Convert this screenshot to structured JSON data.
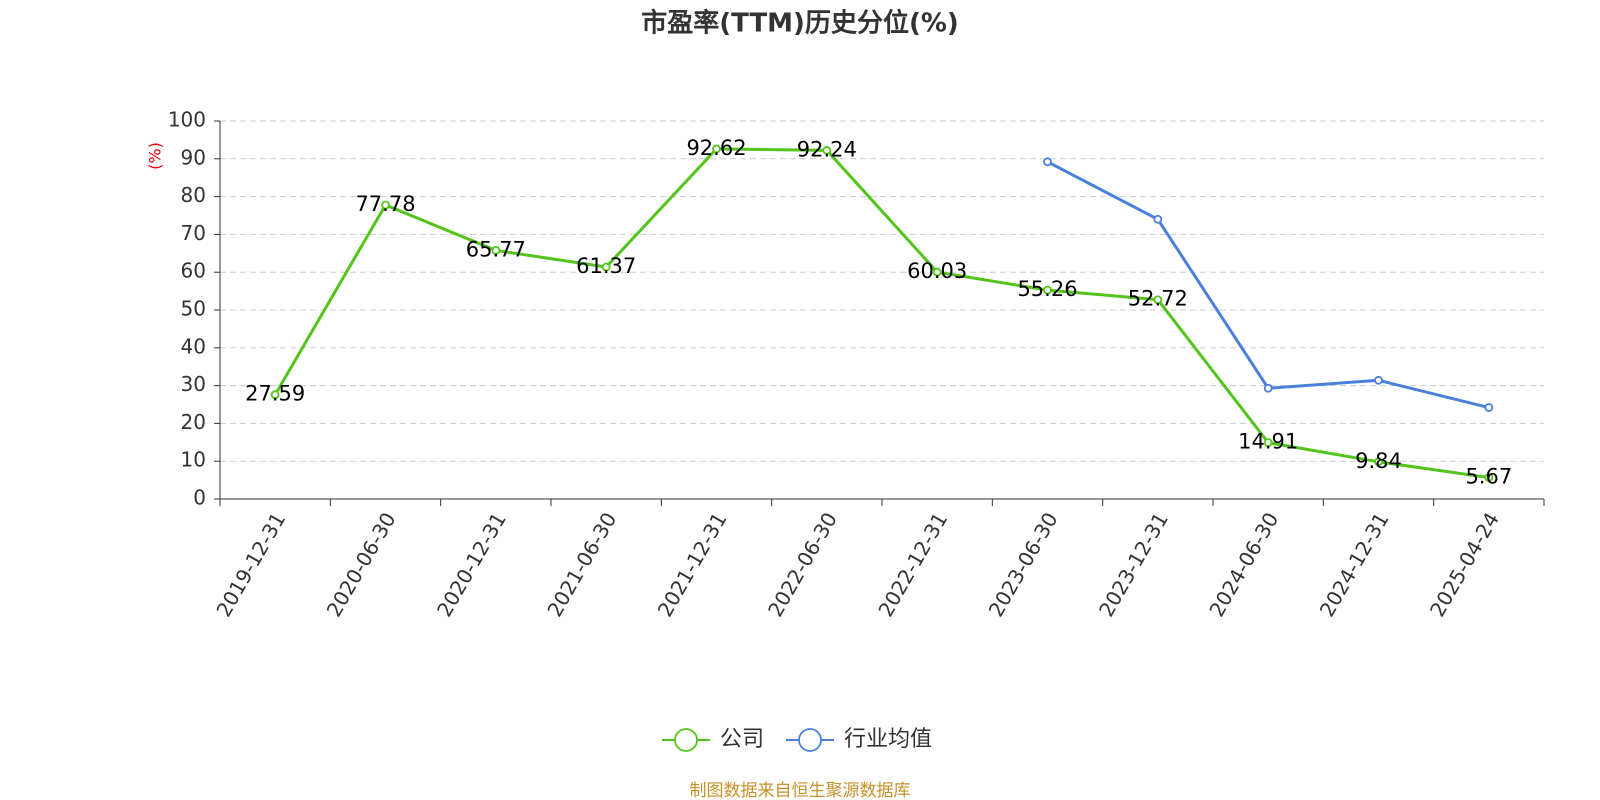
{
  "chart_data": {
    "type": "line",
    "title": "市盈率(TTM)历史分位(%)",
    "y_label": "(%)",
    "categories": [
      "2019-12-31",
      "2020-06-30",
      "2020-12-31",
      "2021-06-30",
      "2021-12-31",
      "2022-06-30",
      "2022-12-31",
      "2023-06-30",
      "2023-12-31",
      "2024-06-30",
      "2024-12-31",
      "2025-04-24"
    ],
    "series": [
      {
        "name": "公司",
        "color": "#52c41a",
        "values": [
          27.59,
          77.78,
          65.77,
          61.37,
          92.62,
          92.24,
          60.03,
          55.26,
          52.72,
          14.91,
          9.84,
          5.67
        ],
        "labels": true
      },
      {
        "name": "行业均值",
        "color": "#4a7fdc",
        "values": [
          null,
          null,
          null,
          null,
          null,
          null,
          null,
          89.2,
          74.0,
          29.3,
          31.4,
          24.2
        ],
        "labels": false
      }
    ],
    "ylim": [
      0,
      100
    ],
    "yticks": [
      0,
      10,
      20,
      30,
      40,
      50,
      60,
      70,
      80,
      90,
      100
    ],
    "grid": true,
    "source": "制图数据来自恒生聚源数据库"
  }
}
